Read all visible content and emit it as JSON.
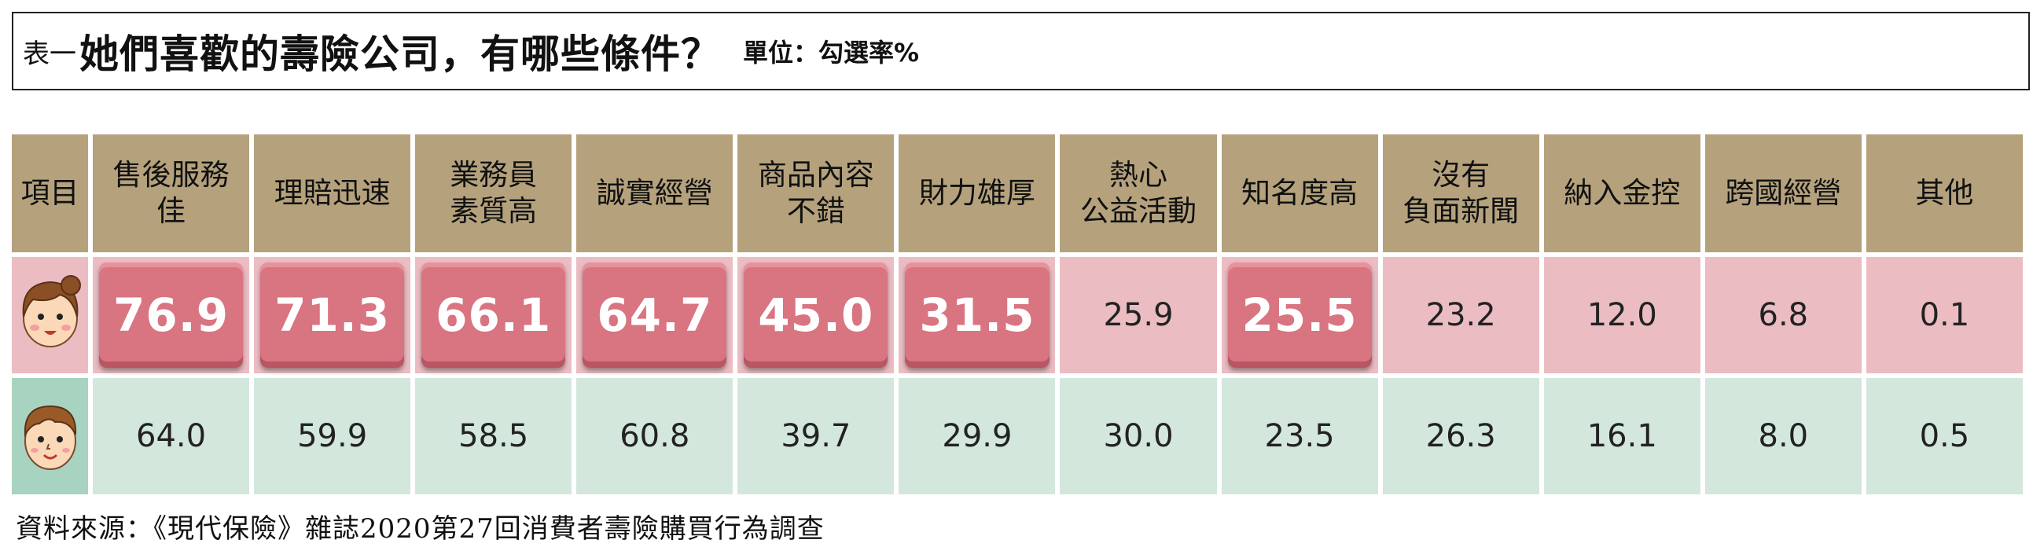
{
  "title": {
    "prefix": "表一",
    "main": "她們喜歡的壽險公司，有哪些條件？",
    "unit": "單位：勾選率%"
  },
  "table": {
    "header_first": "項目",
    "headers": [
      [
        "售後服務",
        "佳"
      ],
      [
        "理賠迅速"
      ],
      [
        "業務員",
        "素質高"
      ],
      [
        "誠實經營"
      ],
      [
        "商品內容",
        "不錯"
      ],
      [
        "財力雄厚"
      ],
      [
        "熱心",
        "公益活動"
      ],
      [
        "知名度高"
      ],
      [
        "沒有",
        "負面新聞"
      ],
      [
        "納入金控"
      ],
      [
        "跨國經營"
      ],
      [
        "其他"
      ]
    ]
  },
  "chart_data": {
    "type": "table",
    "categories": [
      "售後服務佳",
      "理賠迅速",
      "業務員素質高",
      "誠實經營",
      "商品內容不錯",
      "財力雄厚",
      "熱心公益活動",
      "知名度高",
      "沒有負面新聞",
      "納入金控",
      "跨國經營",
      "其他"
    ],
    "series": [
      {
        "values": [
          "76.9",
          "71.3",
          "66.1",
          "64.7",
          "45.0",
          "31.5",
          "25.9",
          "25.5",
          "23.2",
          "12.0",
          "6.8",
          "0.1"
        ],
        "highlighted": [
          true,
          true,
          true,
          true,
          true,
          true,
          false,
          true,
          false,
          false,
          false,
          false
        ],
        "color": "#ebbdc3",
        "highlight_color": "#d97481",
        "icon": "female-face-icon"
      },
      {
        "values": [
          "64.0",
          "59.9",
          "58.5",
          "60.8",
          "39.7",
          "29.9",
          "30.0",
          "23.5",
          "26.3",
          "16.1",
          "8.0",
          "0.5"
        ],
        "color": "#d3e7dd",
        "icon": "male-face-icon"
      }
    ],
    "header_color": "#b5a27d"
  },
  "source": "資料來源：《現代保險》雜誌2020第27回消費者壽險購買行為調查"
}
